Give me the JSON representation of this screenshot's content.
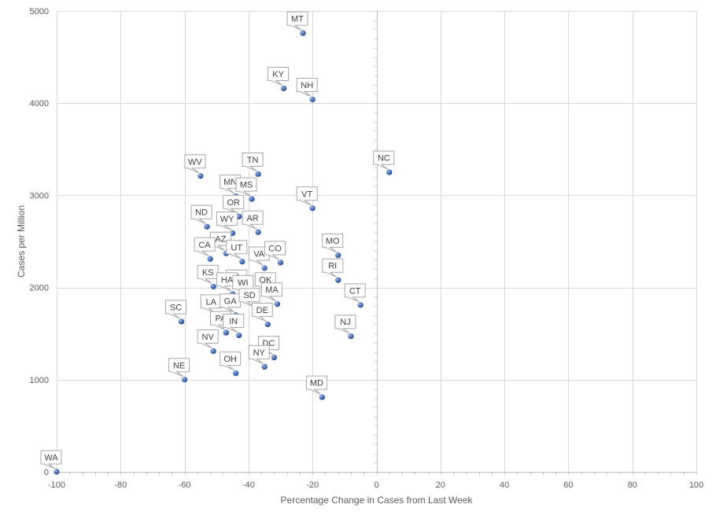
{
  "chart_data": {
    "type": "scatter",
    "title": "",
    "xlabel": "Percentage Change  in Cases from Last Week",
    "ylabel": "Cases per Million",
    "xlim": [
      -100,
      100
    ],
    "ylim": [
      0,
      5000
    ],
    "x_ticks": [
      -100,
      -80,
      -60,
      -40,
      -20,
      0,
      20,
      40,
      60,
      80,
      100
    ],
    "y_ticks": [
      0,
      1000,
      2000,
      3000,
      4000,
      5000
    ],
    "x_tick_labels": [
      "-100",
      "-80",
      "-60",
      "-40",
      "-20",
      "0",
      "20",
      "40",
      "60",
      "80",
      "100"
    ],
    "y_tick_labels": [
      "0",
      "1000",
      "2000",
      "3000",
      "4000",
      "5000"
    ],
    "grid": true,
    "marker_color": "#4472c4",
    "points": [
      {
        "label": "MT",
        "x": -23,
        "y": 4760
      },
      {
        "label": "KY",
        "x": -29,
        "y": 4160
      },
      {
        "label": "NH",
        "x": -20,
        "y": 4040
      },
      {
        "label": "WV",
        "x": -55,
        "y": 3210
      },
      {
        "label": "TN",
        "x": -37,
        "y": 3230
      },
      {
        "label": "NC",
        "x": 4,
        "y": 3250
      },
      {
        "label": "MN",
        "x": -44,
        "y": 2990
      },
      {
        "label": "MS",
        "x": -39,
        "y": 2960
      },
      {
        "label": "VT",
        "x": -20,
        "y": 2860
      },
      {
        "label": "OR",
        "x": -43,
        "y": 2770
      },
      {
        "label": "ND",
        "x": -53,
        "y": 2660
      },
      {
        "label": "WY",
        "x": -45,
        "y": 2590
      },
      {
        "label": "AR",
        "x": -37,
        "y": 2600
      },
      {
        "label": "MO",
        "x": -12,
        "y": 2350
      },
      {
        "label": "AZ",
        "x": -47,
        "y": 2370
      },
      {
        "label": "CA",
        "x": -52,
        "y": 2310
      },
      {
        "label": "UT",
        "x": -42,
        "y": 2280
      },
      {
        "label": "VA",
        "x": -35,
        "y": 2210
      },
      {
        "label": "CO",
        "x": -30,
        "y": 2270
      },
      {
        "label": "RI",
        "x": -12,
        "y": 2080
      },
      {
        "label": "KS",
        "x": -51,
        "y": 2010
      },
      {
        "label": "AL",
        "x": -42,
        "y": 1960
      },
      {
        "label": "HA",
        "x": -45,
        "y": 1930
      },
      {
        "label": "WI",
        "x": -40,
        "y": 1900
      },
      {
        "label": "OK",
        "x": -33,
        "y": 1930
      },
      {
        "label": "MA",
        "x": -31,
        "y": 1820
      },
      {
        "label": "CT",
        "x": -5,
        "y": 1810
      },
      {
        "label": "LA",
        "x": -50,
        "y": 1690
      },
      {
        "label": "GA",
        "x": -44,
        "y": 1700
      },
      {
        "label": "SD",
        "x": -38,
        "y": 1760
      },
      {
        "label": "SC",
        "x": -61,
        "y": 1630
      },
      {
        "label": "PA",
        "x": -47,
        "y": 1510
      },
      {
        "label": "IN",
        "x": -43,
        "y": 1480
      },
      {
        "label": "DE",
        "x": -34,
        "y": 1600
      },
      {
        "label": "NJ",
        "x": -8,
        "y": 1470
      },
      {
        "label": "NV",
        "x": -51,
        "y": 1310
      },
      {
        "label": "DC",
        "x": -32,
        "y": 1240
      },
      {
        "label": "NY",
        "x": -35,
        "y": 1140
      },
      {
        "label": "OH",
        "x": -44,
        "y": 1070
      },
      {
        "label": "NE",
        "x": -60,
        "y": 1000
      },
      {
        "label": "MD",
        "x": -17,
        "y": 810
      },
      {
        "label": "WA",
        "x": -100,
        "y": 0
      }
    ]
  }
}
